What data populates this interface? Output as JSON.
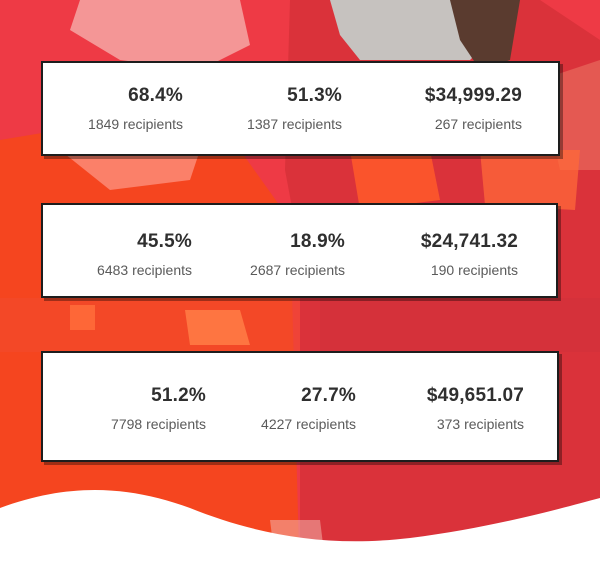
{
  "theme": {
    "background_red": "#ee3a45",
    "dark_red": "#cf2d33",
    "orange": "#f4461e",
    "card_border": "#1d1d1d",
    "value_color": "#2f2f2f",
    "sub_color": "#5a5a5a"
  },
  "cards": [
    {
      "stats": [
        {
          "value": "68.4%",
          "sub": "1849 recipients"
        },
        {
          "value": "51.3%",
          "sub": "1387 recipients"
        },
        {
          "value": "$34,999.29",
          "sub": "267 recipients"
        }
      ]
    },
    {
      "stats": [
        {
          "value": "45.5%",
          "sub": "6483 recipients"
        },
        {
          "value": "18.9%",
          "sub": "2687 recipients"
        },
        {
          "value": "$24,741.32",
          "sub": "190 recipients"
        }
      ]
    },
    {
      "stats": [
        {
          "value": "51.2%",
          "sub": "7798 recipients"
        },
        {
          "value": "27.7%",
          "sub": "4227 recipients"
        },
        {
          "value": "$49,651.07",
          "sub": "373 recipients"
        }
      ]
    }
  ]
}
